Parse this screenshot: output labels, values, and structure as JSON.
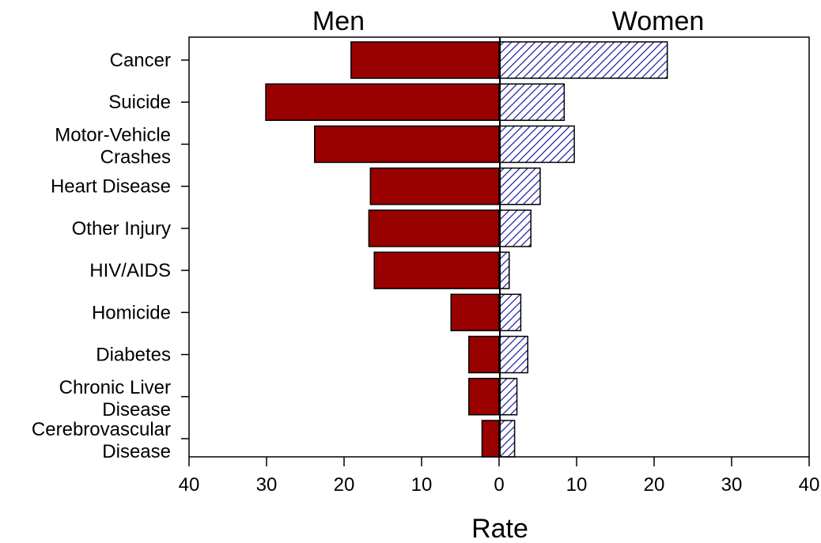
{
  "chart_data": {
    "type": "bar",
    "orientation": "horizontal",
    "layout": "diverging",
    "left_header": "Men",
    "right_header": "Women",
    "xlabel": "Rate",
    "ylabel": "",
    "title": "",
    "xlim": [
      -40,
      40
    ],
    "x_ticks": [
      -40,
      -30,
      -20,
      -10,
      0,
      10,
      20,
      30,
      40
    ],
    "x_tick_labels": [
      "40",
      "30",
      "20",
      "10",
      "0",
      "10",
      "20",
      "30",
      "40"
    ],
    "grid": false,
    "legend": "none",
    "categories": [
      [
        "Cancer"
      ],
      [
        "Suicide"
      ],
      [
        "Motor-Vehicle",
        "Crashes"
      ],
      [
        "Heart Disease"
      ],
      [
        "Other Injury"
      ],
      [
        "HIV/AIDS"
      ],
      [
        "Homicide"
      ],
      [
        "Diabetes"
      ],
      [
        "Chronic Liver",
        "Disease"
      ],
      [
        "Cerebrovascular",
        "Disease"
      ]
    ],
    "series": [
      {
        "side": "left",
        "fill": "solid",
        "color": "#990000",
        "values": [
          19.1,
          30.1,
          23.8,
          16.6,
          16.8,
          16.1,
          6.2,
          3.9,
          3.9,
          2.2
        ]
      },
      {
        "side": "right",
        "fill": "hatched",
        "color": "#1a1aa6",
        "values": [
          21.7,
          8.4,
          9.7,
          5.3,
          4.1,
          1.3,
          2.8,
          3.7,
          2.3,
          2.0
        ]
      }
    ]
  }
}
